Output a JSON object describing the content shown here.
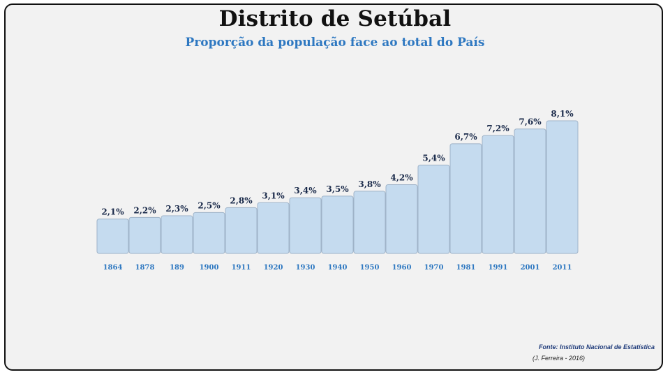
{
  "chart_data": {
    "type": "bar",
    "title": "Distrito de Setúbal",
    "subtitle": "Proporção da população face ao total do País",
    "categories": [
      "1864",
      "1878",
      "189",
      "1900",
      "1911",
      "1920",
      "1930",
      "1940",
      "1950",
      "1960",
      "1970",
      "1981",
      "1991",
      "2001",
      "2011"
    ],
    "values": [
      2.1,
      2.2,
      2.3,
      2.5,
      2.8,
      3.1,
      3.4,
      3.5,
      3.8,
      4.2,
      5.4,
      6.7,
      7.2,
      7.6,
      8.1
    ],
    "data_labels": [
      "2,1%",
      "2,2%",
      "2,3%",
      "2,5%",
      "2,8%",
      "3,1%",
      "3,4%",
      "3,5%",
      "3,8%",
      "4,2%",
      "5,4%",
      "6,7%",
      "7,2%",
      "7,6%",
      "8,1%"
    ],
    "xlabel": "",
    "ylabel": "",
    "grid": false,
    "legend": "none",
    "colors": {
      "bar_fill": "#c5dbef",
      "bar_stroke": "#9fb3c8",
      "category_label": "#2e78c1",
      "data_label": "#1a2a4a"
    }
  },
  "footer": {
    "source": "Fonte: Instituto Nacional de Estatística",
    "author": "(J. Ferreira - 2016)"
  }
}
